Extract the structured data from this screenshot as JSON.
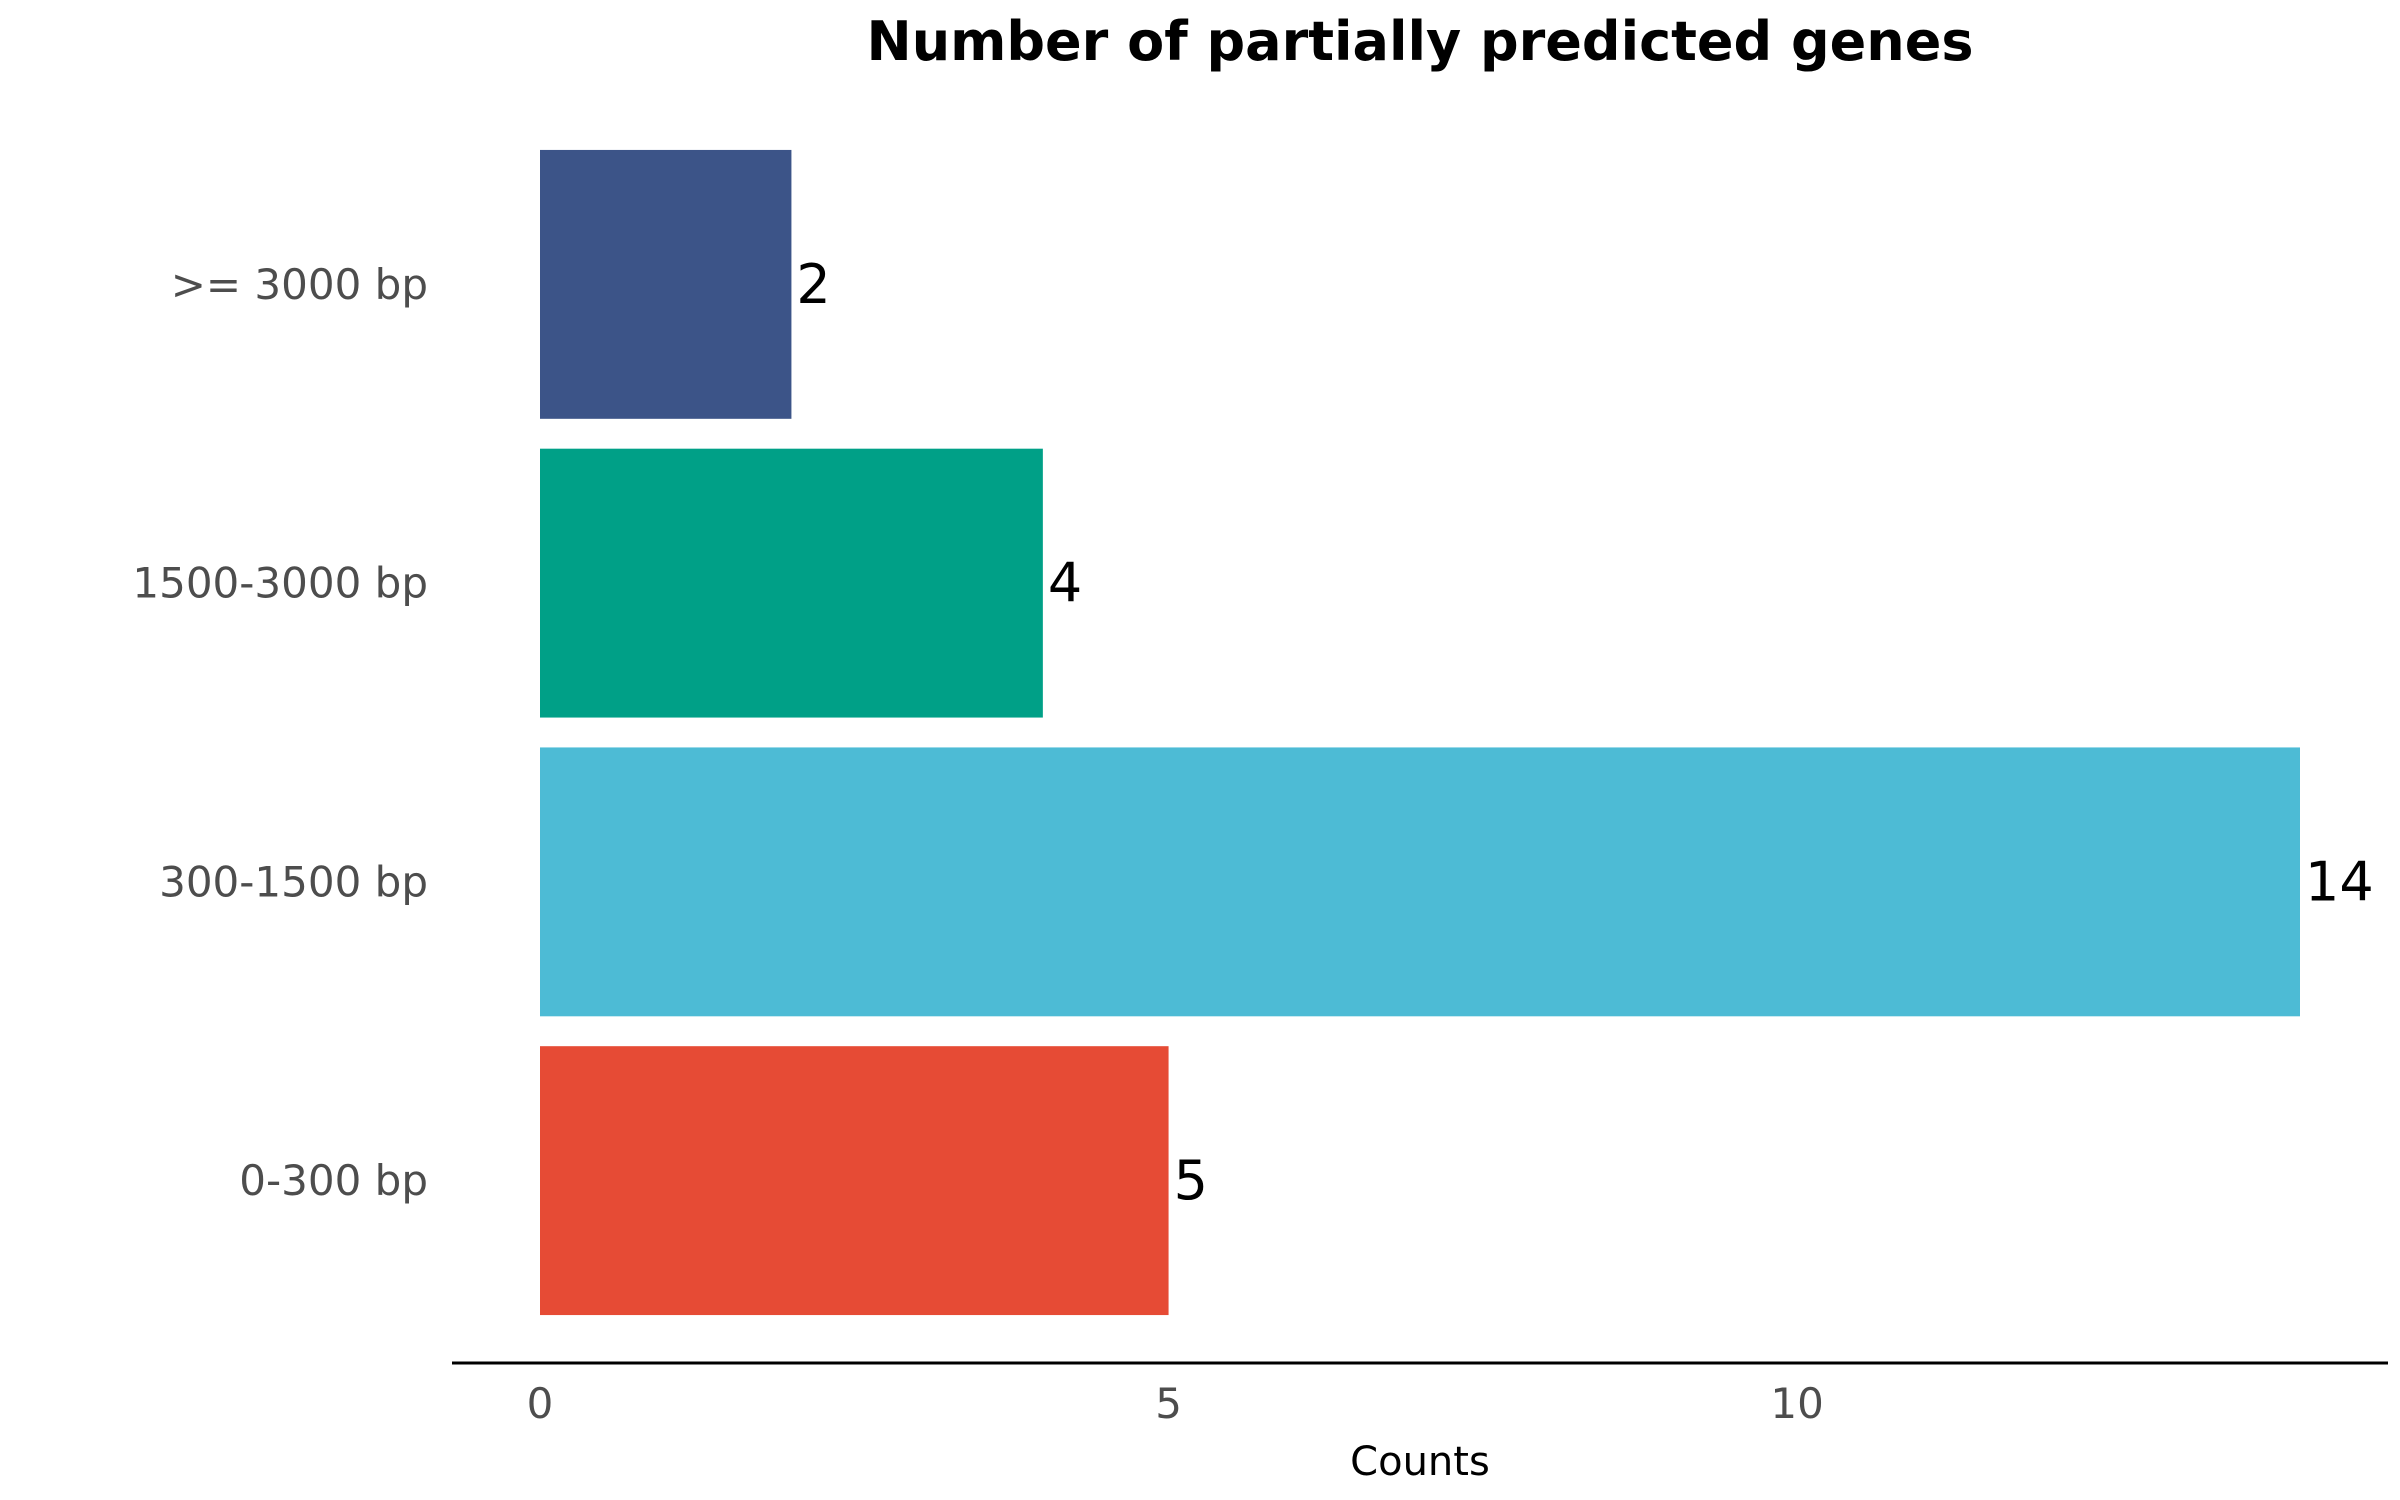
{
  "chart_data": {
    "type": "bar",
    "orientation": "horizontal",
    "title": "Number of partially predicted genes",
    "xlabel": "Counts",
    "ylabel": "",
    "categories": [
      "0-300 bp",
      "300-1500 bp",
      "1500-3000 bp",
      ">= 3000 bp"
    ],
    "values": [
      5,
      14,
      4,
      2
    ],
    "data_labels": [
      "5",
      "14",
      "4",
      "2"
    ],
    "colors": [
      "#E64B35",
      "#4DBBD5",
      "#00A087",
      "#3C5488"
    ],
    "xticks": [
      0,
      5,
      10
    ],
    "xlim": [
      -0.7,
      14.7
    ],
    "grid": false,
    "legend": "none"
  }
}
